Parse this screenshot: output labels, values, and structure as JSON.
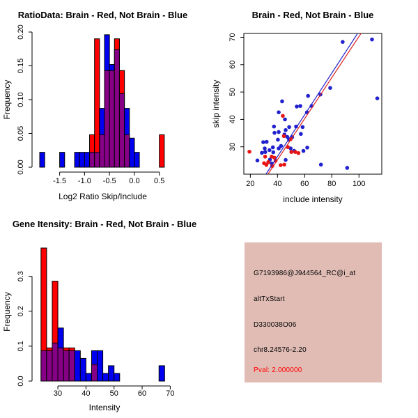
{
  "colors": {
    "hist_blue": "#0000F0",
    "hist_red": "#FF0000",
    "overlap_purple": "#850085",
    "scatter_blue": "#2121CE",
    "scatter_red": "#E81515",
    "line_blue": "#2222CC",
    "line_red": "#DD2222",
    "axis": "#000000",
    "info_bg": "#E0BCB4"
  },
  "chart_data": [
    {
      "id": "ratio_hist",
      "type": "bar",
      "title": "RatioData: Brain - Red, Not Brain - Blue",
      "xlabel": "Log2 Ratio Skip/Include",
      "ylabel": "Frequency",
      "legend_note": "red = Brain, blue = Not Brain, purple = overlap",
      "bin_width": 0.1,
      "xlim": [
        -1.97,
        0.7
      ],
      "ymax": 0.2,
      "xticks": [
        [
          -1.5,
          "-1.5"
        ],
        [
          -1.0,
          "-1.0"
        ],
        [
          -0.5,
          "-0.5"
        ],
        [
          0.0,
          "0.0"
        ],
        [
          0.5,
          "0.5"
        ]
      ],
      "yticks": [
        [
          0,
          "0.00"
        ],
        [
          0.05,
          "0.05"
        ],
        [
          0.1,
          "0.10"
        ],
        [
          0.15,
          "0.15"
        ],
        [
          0.2,
          "0.20"
        ]
      ],
      "bins": [
        {
          "x": -1.9,
          "blue": 0.022,
          "red": 0
        },
        {
          "x": -1.5,
          "blue": 0.022,
          "red": 0
        },
        {
          "x": -1.2,
          "blue": 0.022,
          "red": 0
        },
        {
          "x": -1.1,
          "blue": 0.022,
          "red": 0
        },
        {
          "x": -1.0,
          "blue": 0.022,
          "red": 0
        },
        {
          "x": -0.9,
          "blue": 0.022,
          "red": 0.048
        },
        {
          "x": -0.8,
          "blue": 0.022,
          "red": 0.19
        },
        {
          "x": -0.7,
          "blue": 0.087,
          "red": 0.048
        },
        {
          "x": -0.6,
          "blue": 0.196,
          "red": 0.143
        },
        {
          "x": -0.5,
          "blue": 0.152,
          "red": 0.143
        },
        {
          "x": -0.4,
          "blue": 0.174,
          "red": 0.19
        },
        {
          "x": -0.3,
          "blue": 0.109,
          "red": 0.143
        },
        {
          "x": -0.2,
          "blue": 0.087,
          "red": 0.048
        },
        {
          "x": -0.1,
          "blue": 0.043,
          "red": 0
        },
        {
          "x": 0.0,
          "blue": 0.022,
          "red": 0
        },
        {
          "x": 0.5,
          "blue": 0,
          "red": 0.048
        }
      ]
    },
    {
      "id": "scatter",
      "type": "scatter",
      "title": "Brain - Red, Not Brain - Blue",
      "xlabel": "include intensity",
      "ylabel": "skip intensity",
      "xlim": [
        15.2,
        116.8
      ],
      "ylim": [
        20,
        71.4
      ],
      "xticks": [
        [
          20,
          "20"
        ],
        [
          40,
          "40"
        ],
        [
          60,
          "60"
        ],
        [
          80,
          "80"
        ],
        [
          100,
          "100"
        ]
      ],
      "yticks": [
        [
          30,
          "30"
        ],
        [
          40,
          "40"
        ],
        [
          50,
          "50"
        ],
        [
          60,
          "60"
        ],
        [
          70,
          "70"
        ]
      ],
      "series": [
        {
          "name": "Not Brain",
          "color_key": "scatter_blue",
          "points": [
            [
              25.2,
              25.0
            ],
            [
              28.5,
              27.8
            ],
            [
              29.5,
              31.7
            ],
            [
              30.6,
              29.4
            ],
            [
              31.0,
              28.1
            ],
            [
              32.0,
              31.8
            ],
            [
              34.1,
              28.8
            ],
            [
              34.4,
              25.3
            ],
            [
              35.7,
              23.9
            ],
            [
              36.9,
              28.0
            ],
            [
              36.6,
              29.8
            ],
            [
              37.4,
              37.4
            ],
            [
              37.8,
              35.1
            ],
            [
              40.3,
              32.6
            ],
            [
              40.9,
              29.4
            ],
            [
              40.9,
              35.4
            ],
            [
              40.9,
              42.6
            ],
            [
              42.6,
              30.3
            ],
            [
              43.4,
              46.6
            ],
            [
              45.5,
              40.0
            ],
            [
              46.0,
              36.1
            ],
            [
              45.1,
              34.5
            ],
            [
              46.0,
              25.2
            ],
            [
              47.2,
              33.6
            ],
            [
              48.5,
              32.6
            ],
            [
              48.6,
              37.2
            ],
            [
              49.7,
              29.4
            ],
            [
              50.8,
              33.5
            ],
            [
              52.3,
              28.5
            ],
            [
              53.7,
              37.4
            ],
            [
              54.2,
              44.7
            ],
            [
              56.8,
              44.9
            ],
            [
              57.2,
              34.7
            ],
            [
              58.5,
              37.2
            ],
            [
              59.1,
              28.5
            ],
            [
              61.7,
              42.6
            ],
            [
              61.9,
              29.7
            ],
            [
              62.5,
              48.6
            ],
            [
              65.1,
              44.9
            ],
            [
              71.6,
              49.1
            ],
            [
              72.0,
              23.5
            ],
            [
              78.8,
              51.5
            ],
            [
              88.0,
              68.3
            ],
            [
              91.3,
              22.3
            ],
            [
              109.6,
              69.2
            ],
            [
              113.5,
              47.7
            ]
          ]
        },
        {
          "name": "Brain",
          "color_key": "scatter_red",
          "points": [
            [
              19.3,
              28.2
            ],
            [
              30.1,
              24.0
            ],
            [
              30.9,
              26.4
            ],
            [
              31.8,
              23.4
            ],
            [
              33.2,
              24.4
            ],
            [
              35.7,
              26.4
            ],
            [
              36.1,
              23.0
            ],
            [
              37.8,
              26.0
            ],
            [
              38.6,
              24.9
            ],
            [
              42.3,
              23.3
            ],
            [
              43.9,
              41.3
            ],
            [
              44.7,
              33.9
            ],
            [
              45.0,
              23.5
            ],
            [
              47.6,
              29.9
            ],
            [
              49.7,
              32.8
            ],
            [
              50.2,
              28.1
            ],
            [
              53.1,
              28.1
            ],
            [
              55.4,
              27.7
            ]
          ]
        }
      ],
      "fit_lines": [
        {
          "name": "not-brain-fit",
          "color_key": "line_blue",
          "x1": 31.5,
          "y1": 20,
          "x2": 99.0,
          "y2": 71.4
        },
        {
          "name": "brain-fit",
          "color_key": "line_red",
          "x1": 33.0,
          "y1": 20,
          "x2": 101.5,
          "y2": 71.4
        }
      ]
    },
    {
      "id": "gene_hist",
      "type": "bar",
      "title": "Gene Itensity: Brain - Red, Not Brain - Blue",
      "xlabel": "Intensity",
      "ylabel": "Frequency",
      "legend_note": "red = Brain, blue = Not Brain, purple = overlap",
      "bin_width": 2,
      "xlim": [
        22.3,
        70.9
      ],
      "ymax": 0.397,
      "xticks": [
        [
          30,
          "30"
        ],
        [
          40,
          "40"
        ],
        [
          50,
          "50"
        ],
        [
          60,
          "60"
        ],
        [
          70,
          "70"
        ]
      ],
      "yticks": [
        [
          0,
          "0.0"
        ],
        [
          0.1,
          "0.1"
        ],
        [
          0.2,
          "0.2"
        ],
        [
          0.3,
          "0.3"
        ]
      ],
      "bins": [
        {
          "x": 24,
          "blue": 0.087,
          "red": 0.381
        },
        {
          "x": 26,
          "blue": 0.087,
          "red": 0.095
        },
        {
          "x": 28,
          "blue": 0.109,
          "red": 0.286
        },
        {
          "x": 30,
          "blue": 0.152,
          "red": 0.095
        },
        {
          "x": 32,
          "blue": 0.087,
          "red": 0.095
        },
        {
          "x": 34,
          "blue": 0.087,
          "red": 0.095
        },
        {
          "x": 36,
          "blue": 0.087,
          "red": 0
        },
        {
          "x": 38,
          "blue": 0.065,
          "red": 0
        },
        {
          "x": 40,
          "blue": 0.022,
          "red": 0
        },
        {
          "x": 42,
          "blue": 0.087,
          "red": 0.048
        },
        {
          "x": 44,
          "blue": 0.087,
          "red": 0
        },
        {
          "x": 46,
          "blue": 0.022,
          "red": 0
        },
        {
          "x": 48,
          "blue": 0.044,
          "red": 0
        },
        {
          "x": 50,
          "blue": 0.022,
          "red": 0
        },
        {
          "x": 66,
          "blue": 0.044,
          "red": 0
        }
      ]
    }
  ],
  "info_panel": {
    "bg": "#E0BCB4",
    "lines": [
      {
        "text": "G7193986@J944564_RC@i_at",
        "color": "#000000"
      },
      {
        "text": "altTxStart",
        "color": "#000000"
      },
      {
        "text": "D330038O06",
        "color": "#000000"
      },
      {
        "text": "chr8.24576-2.20",
        "color": "#000000"
      },
      {
        "text": "Pval: 2.000000",
        "color": "#FF0000"
      }
    ]
  }
}
